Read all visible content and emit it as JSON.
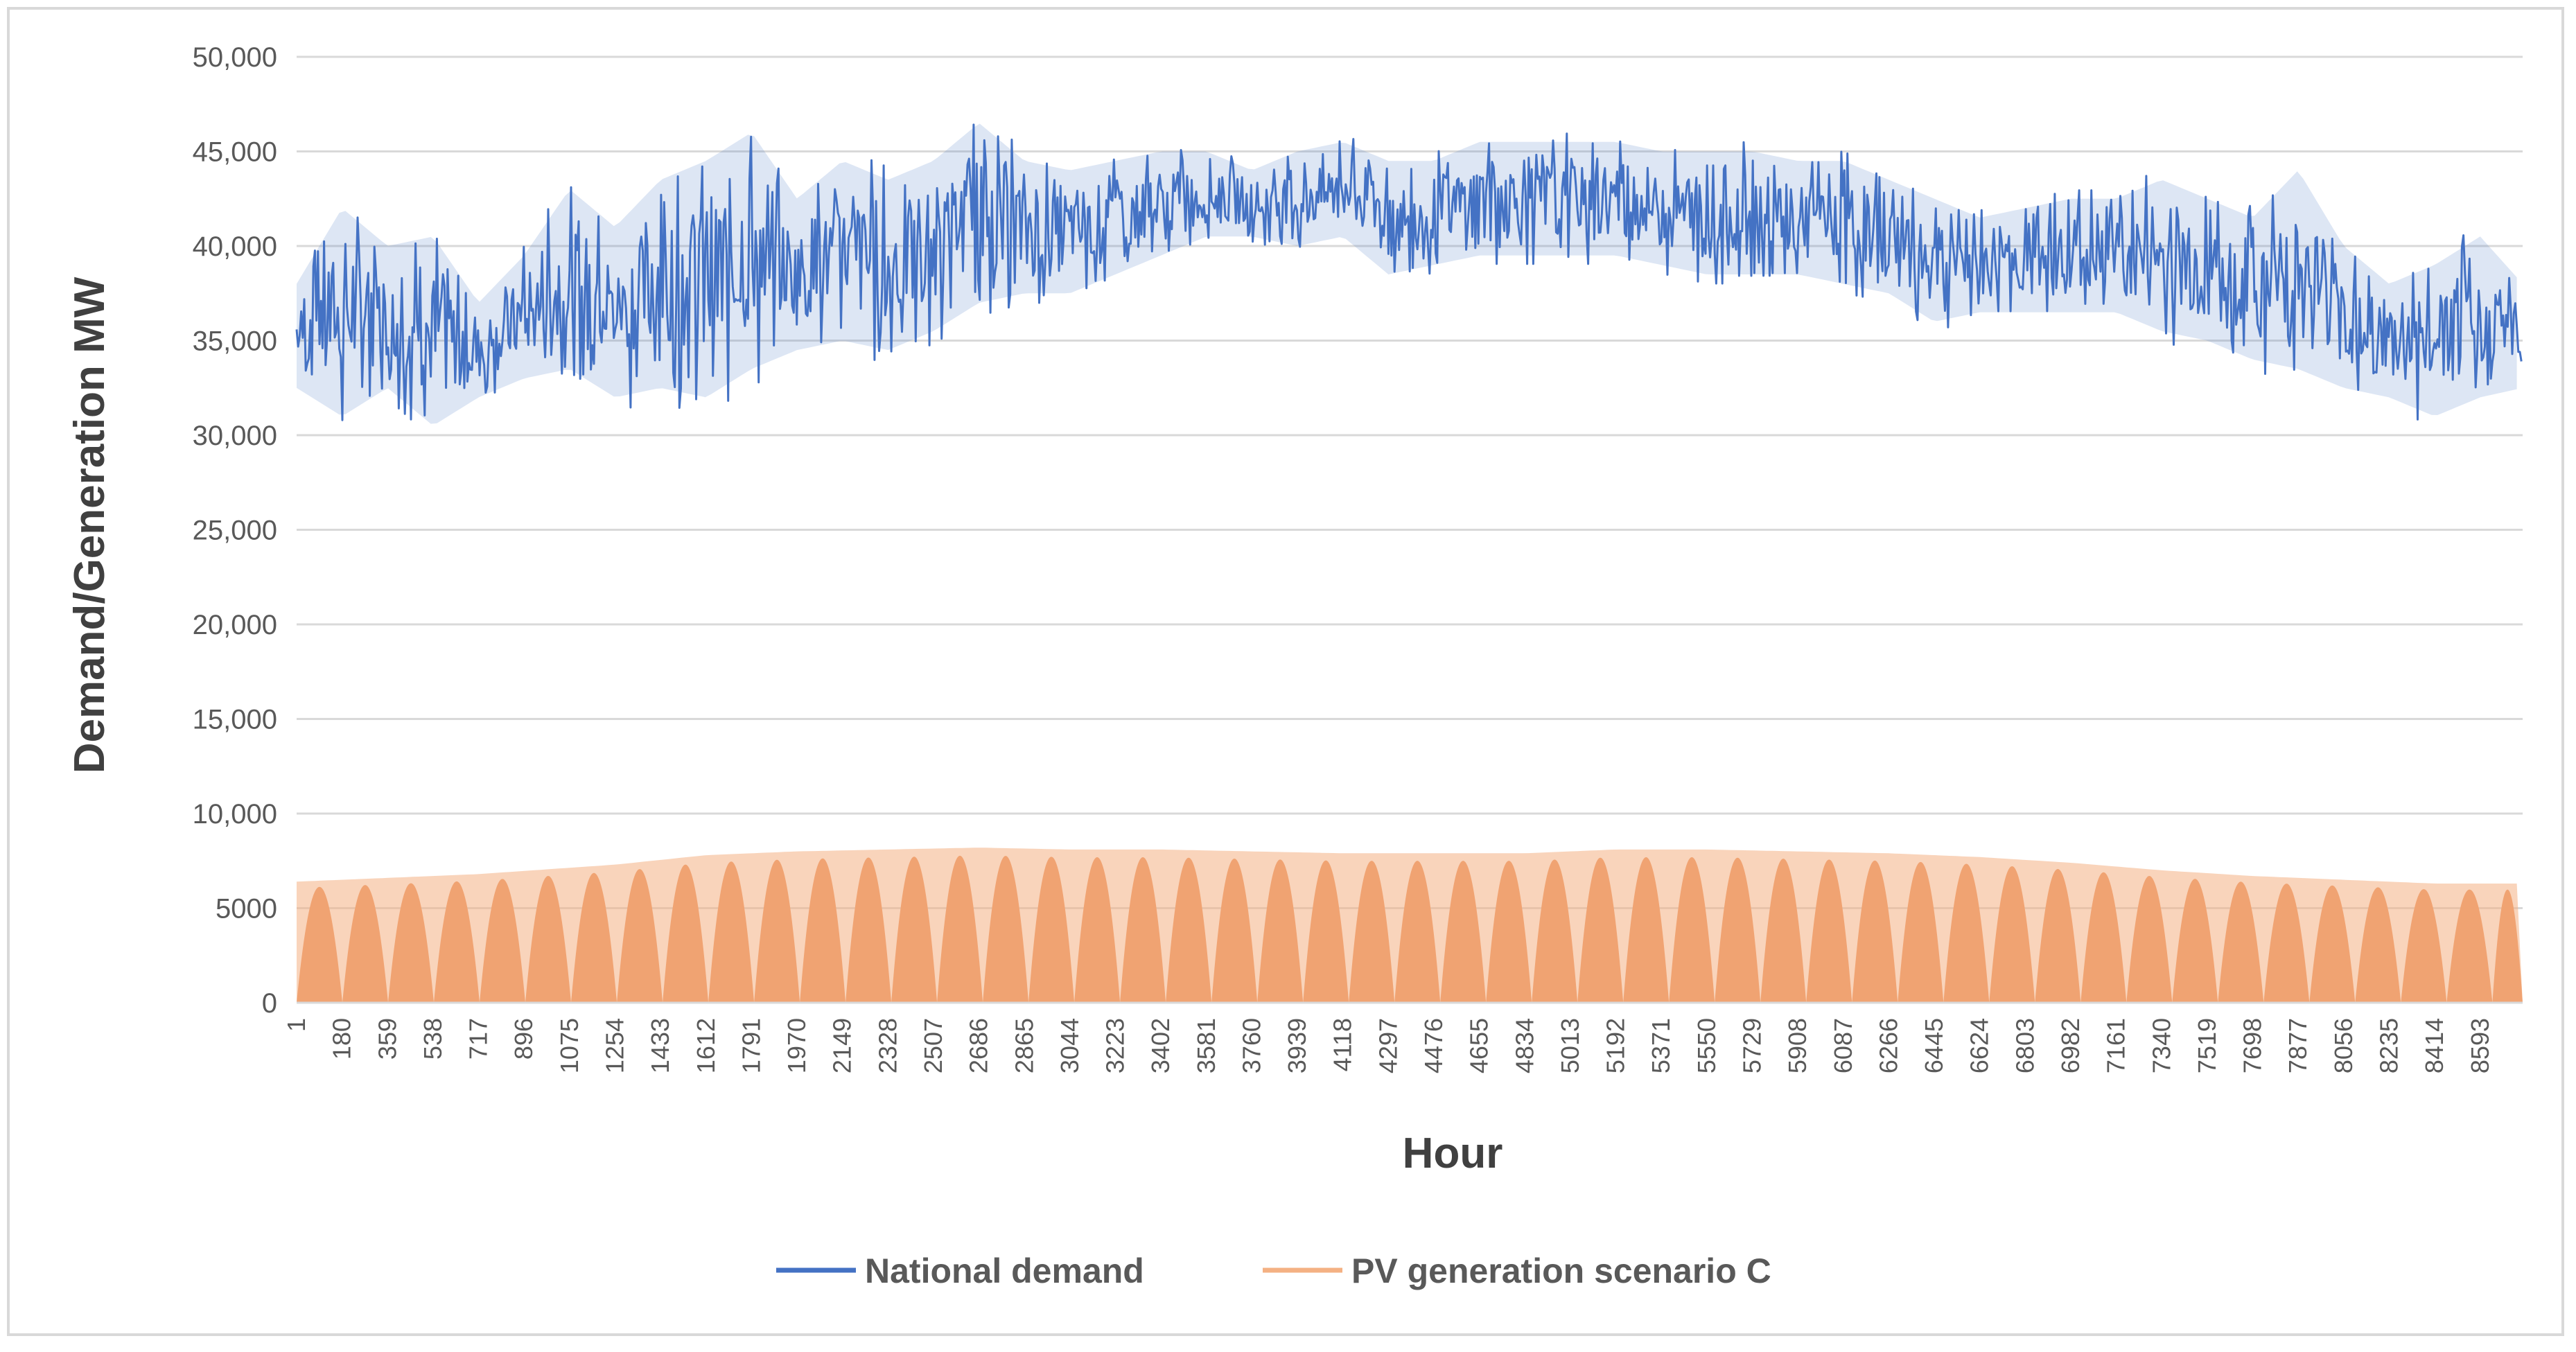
{
  "chart_data": {
    "type": "line",
    "title": "",
    "xlabel": "Hour",
    "ylabel": "Demand/Generation MW",
    "ylim": [
      0,
      50000
    ],
    "yticks": [
      {
        "value": 0,
        "label": "0"
      },
      {
        "value": 5000,
        "label": "5000"
      },
      {
        "value": 10000,
        "label": "10,000"
      },
      {
        "value": 15000,
        "label": "15,000"
      },
      {
        "value": 20000,
        "label": "20,000"
      },
      {
        "value": 25000,
        "label": "25,000"
      },
      {
        "value": 30000,
        "label": "30,000"
      },
      {
        "value": 35000,
        "label": "35,000"
      },
      {
        "value": 40000,
        "label": "40,000"
      },
      {
        "value": 45000,
        "label": "45,000"
      },
      {
        "value": 50000,
        "label": "50,000"
      }
    ],
    "xlim": [
      1,
      8760
    ],
    "xticks": [
      "1",
      "180",
      "359",
      "538",
      "717",
      "896",
      "1075",
      "1254",
      "1433",
      "1612",
      "1791",
      "1970",
      "2149",
      "2328",
      "2507",
      "2686",
      "2865",
      "3044",
      "3223",
      "3402",
      "3581",
      "3760",
      "3939",
      "4118",
      "4297",
      "4476",
      "4655",
      "4834",
      "5013",
      "5192",
      "5371",
      "5550",
      "5729",
      "5908",
      "6087",
      "6266",
      "6445",
      "6624",
      "6803",
      "6982",
      "7161",
      "7340",
      "7519",
      "7698",
      "7877",
      "8056",
      "8235",
      "8414",
      "8593"
    ],
    "grid": true,
    "legend_position": "bottom",
    "series": [
      {
        "name": "National demand",
        "color": "#4472c4",
        "x": [
          1,
          180,
          359,
          538,
          717,
          896,
          1075,
          1254,
          1433,
          1612,
          1791,
          1970,
          2149,
          2328,
          2507,
          2686,
          2865,
          3044,
          3223,
          3402,
          3581,
          3760,
          3939,
          4118,
          4297,
          4476,
          4655,
          4834,
          5013,
          5192,
          5371,
          5550,
          5729,
          5908,
          6087,
          6266,
          6445,
          6624,
          6803,
          6982,
          7161,
          7340,
          7519,
          7698,
          7877,
          8056,
          8235,
          8414,
          8593,
          8760
        ],
        "low": [
          32500,
          31000,
          32500,
          30500,
          32000,
          33000,
          33500,
          32000,
          32500,
          32000,
          33500,
          34500,
          35000,
          34500,
          35500,
          37000,
          37500,
          37500,
          38500,
          39500,
          40500,
          40500,
          40000,
          40500,
          38500,
          39000,
          39500,
          39500,
          39500,
          39500,
          39000,
          38500,
          38500,
          38500,
          38000,
          37500,
          36000,
          36500,
          36500,
          36500,
          36500,
          35500,
          35000,
          34000,
          33500,
          32500,
          32000,
          31000,
          32000,
          32500
        ],
        "high": [
          38000,
          42000,
          40000,
          40500,
          37000,
          39500,
          43000,
          41000,
          43500,
          44500,
          46000,
          42500,
          44500,
          43500,
          44500,
          46500,
          44500,
          44000,
          44500,
          45000,
          45000,
          44000,
          45000,
          45500,
          44500,
          44500,
          45500,
          45500,
          45500,
          45500,
          45000,
          45000,
          45000,
          44500,
          44500,
          43500,
          42500,
          41500,
          42000,
          42500,
          42500,
          43500,
          42500,
          41500,
          44000,
          40000,
          38000,
          39000,
          40500,
          38000
        ]
      },
      {
        "name": "PV generation scenario C",
        "color": "#f4b183",
        "x": [
          1,
          717,
          1254,
          1612,
          1970,
          2328,
          2686,
          3044,
          3402,
          3760,
          4118,
          4476,
          4834,
          5192,
          5550,
          5908,
          6266,
          6624,
          6982,
          7340,
          7698,
          8056,
          8414,
          8760
        ],
        "daily_peak": [
          6400,
          6800,
          7300,
          7800,
          8000,
          8100,
          8200,
          8100,
          8100,
          8000,
          7900,
          7900,
          7900,
          8100,
          8100,
          8000,
          7900,
          7700,
          7400,
          7000,
          6700,
          6500,
          6300,
          6300
        ]
      }
    ]
  }
}
